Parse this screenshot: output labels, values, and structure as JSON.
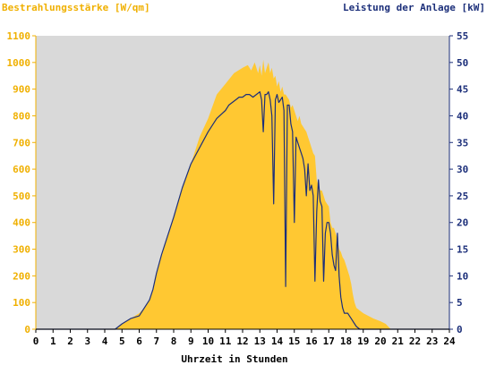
{
  "colors": {
    "background": "#ffffff",
    "plot_background": "#d9d9d9",
    "irradiance": "#ffc832",
    "irradiance_label": "#f0b000",
    "power": "#1c2f7a",
    "axis_text": "#000000"
  },
  "chart_data": {
    "type": "area",
    "left_axis_label": "Bestrahlungsstärke [W/qm]",
    "right_axis_label": "Leistung der Anlage [kW]",
    "xlabel": "Uhrzeit in Stunden",
    "xlim": [
      0,
      24
    ],
    "ylim_left": [
      0,
      1100
    ],
    "ylim_right": [
      0,
      55
    ],
    "x_ticks": [
      "0",
      "1",
      "2",
      "3",
      "4",
      "5",
      "6",
      "7",
      "8",
      "9",
      "10",
      "11",
      "12",
      "13",
      "14",
      "15",
      "16",
      "17",
      "18",
      "19",
      "20",
      "21",
      "22",
      "23",
      "24"
    ],
    "left_ticks": [
      "0",
      "100",
      "200",
      "300",
      "400",
      "500",
      "600",
      "700",
      "800",
      "900",
      "1000",
      "1100"
    ],
    "right_ticks": [
      "0",
      "5",
      "10",
      "15",
      "20",
      "25",
      "30",
      "35",
      "40",
      "45",
      "50",
      "55"
    ],
    "grid": false,
    "series": [
      {
        "name": "Bestrahlungsstärke [W/qm]",
        "axis": "left",
        "style": "area",
        "x": [
          0,
          4.6,
          5.0,
          5.5,
          6.0,
          6.3,
          6.6,
          6.8,
          7.0,
          7.3,
          7.6,
          8.0,
          8.5,
          9.0,
          9.5,
          10.0,
          10.5,
          11.0,
          11.5,
          12.0,
          12.3,
          12.5,
          12.7,
          12.9,
          13.0,
          13.1,
          13.2,
          13.3,
          13.4,
          13.5,
          13.6,
          13.7,
          13.8,
          13.9,
          14.0,
          14.1,
          14.2,
          14.3,
          14.4,
          14.5,
          14.6,
          14.7,
          14.8,
          14.9,
          15.0,
          15.1,
          15.2,
          15.3,
          15.4,
          15.5,
          15.6,
          15.7,
          15.8,
          15.9,
          16.0,
          16.1,
          16.2,
          16.3,
          16.4,
          16.5,
          16.6,
          16.7,
          16.8,
          16.9,
          17.0,
          17.1,
          17.2,
          17.3,
          17.4,
          17.5,
          17.6,
          17.7,
          17.8,
          17.9,
          18.0,
          18.1,
          18.2,
          18.3,
          18.4,
          18.5,
          18.6,
          18.8,
          19.0,
          19.3,
          19.6,
          20.0,
          20.3,
          20.6,
          24
        ],
        "values": [
          0,
          0,
          20,
          40,
          60,
          80,
          110,
          150,
          210,
          280,
          340,
          420,
          530,
          620,
          720,
          790,
          880,
          920,
          960,
          980,
          990,
          970,
          1000,
          960,
          990,
          950,
          1010,
          960,
          980,
          1000,
          960,
          980,
          940,
          950,
          910,
          930,
          890,
          910,
          880,
          880,
          870,
          860,
          830,
          840,
          820,
          800,
          780,
          800,
          770,
          760,
          750,
          740,
          720,
          700,
          680,
          660,
          650,
          560,
          540,
          520,
          520,
          500,
          480,
          470,
          460,
          400,
          380,
          380,
          360,
          340,
          300,
          290,
          270,
          260,
          240,
          220,
          200,
          170,
          130,
          100,
          80,
          70,
          60,
          50,
          40,
          30,
          20,
          0,
          0
        ]
      },
      {
        "name": "Leistung der Anlage [kW]",
        "axis": "right",
        "style": "line",
        "x": [
          0,
          4.6,
          5.0,
          5.5,
          6.0,
          6.3,
          6.6,
          6.8,
          7.0,
          7.3,
          7.6,
          8.0,
          8.5,
          9.0,
          9.5,
          10.0,
          10.5,
          11.0,
          11.2,
          11.4,
          11.6,
          11.8,
          12.0,
          12.2,
          12.4,
          12.6,
          12.8,
          13.0,
          13.1,
          13.2,
          13.3,
          13.4,
          13.5,
          13.6,
          13.7,
          13.8,
          13.9,
          14.0,
          14.1,
          14.2,
          14.3,
          14.4,
          14.5,
          14.6,
          14.7,
          14.8,
          14.9,
          15.0,
          15.1,
          15.2,
          15.3,
          15.4,
          15.5,
          15.6,
          15.7,
          15.8,
          15.9,
          16.0,
          16.1,
          16.2,
          16.3,
          16.4,
          16.5,
          16.6,
          16.7,
          16.8,
          16.9,
          17.0,
          17.1,
          17.2,
          17.3,
          17.4,
          17.5,
          17.6,
          17.7,
          17.8,
          17.9,
          18.0,
          18.1,
          18.2,
          18.3,
          18.4,
          18.5,
          18.6,
          18.8,
          19.0,
          19.3,
          19.6,
          20.0,
          20.3,
          20.6,
          24
        ],
        "values": [
          0,
          0,
          1,
          2,
          2.5,
          4,
          5.5,
          7.5,
          10.5,
          14,
          17,
          21,
          26.5,
          31,
          34,
          37,
          39.5,
          41,
          42,
          42.5,
          43,
          43.5,
          43.5,
          44,
          44,
          43.5,
          44,
          44.5,
          43,
          37,
          44,
          44,
          44.5,
          43,
          40,
          23.5,
          43,
          44,
          42.5,
          43,
          43.5,
          41,
          8,
          42,
          42,
          38.5,
          37,
          20,
          36,
          35,
          34,
          33,
          32,
          30,
          25,
          31,
          26,
          27,
          25,
          9,
          22,
          28,
          24,
          23,
          9,
          18,
          20,
          20,
          18,
          14,
          12,
          11,
          18,
          10,
          6,
          4,
          3,
          3,
          3,
          2.5,
          2,
          1.5,
          1,
          0.5,
          0,
          0,
          0,
          0,
          0,
          0,
          0,
          0
        ]
      }
    ]
  }
}
